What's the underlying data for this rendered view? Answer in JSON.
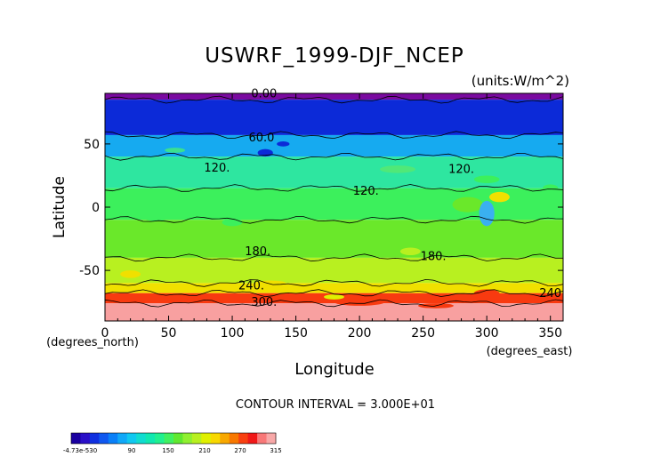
{
  "chart_data": {
    "type": "heatmap",
    "title": "USWRF_1999-DJF_NCEP",
    "units": "(units:W/m^2)",
    "xlabel": "Longitude",
    "ylabel": "Latitude",
    "x_unit_label": "(degrees_east)",
    "y_unit_label": "(degrees_north)",
    "xlim": [
      0,
      360
    ],
    "ylim": [
      -90,
      90
    ],
    "x_ticks": [
      0,
      50,
      100,
      150,
      200,
      250,
      300,
      350
    ],
    "y_ticks": [
      50,
      0,
      -50
    ],
    "contour_interval_text": "CONTOUR INTERVAL = 3.000E+01",
    "contour_labels": [
      "0.00",
      "60.0",
      "120.",
      "120.",
      "120.",
      "180.",
      "180.",
      "240.",
      "240",
      "300."
    ],
    "colorbar": {
      "labels": [
        "-4.73e-530",
        "90",
        "150",
        "210",
        "270",
        "315"
      ],
      "colors": [
        "#1a00a0",
        "#2a10c8",
        "#1030e0",
        "#1058f0",
        "#0a80f8",
        "#10a8f8",
        "#10c8f0",
        "#10dcd0",
        "#10e8b0",
        "#20f090",
        "#40f060",
        "#60e830",
        "#90f030",
        "#b8f020",
        "#e0f000",
        "#f8d800",
        "#f8a800",
        "#f87800",
        "#f84010",
        "#f01818",
        "#f87878",
        "#f8a8a8"
      ]
    },
    "zonal_bands": [
      {
        "lat_from": 90,
        "lat_to": 85,
        "value": 0,
        "color": "#7a0aa0"
      },
      {
        "lat_from": 85,
        "lat_to": 57,
        "value": 30,
        "color": "#0c2ad8"
      },
      {
        "lat_from": 57,
        "lat_to": 40,
        "value": 90,
        "color": "#16aaf0"
      },
      {
        "lat_from": 40,
        "lat_to": 15,
        "value": 120,
        "color": "#2ee6a0"
      },
      {
        "lat_from": 15,
        "lat_to": -10,
        "value": 120,
        "color": "#3cf05c"
      },
      {
        "lat_from": -10,
        "lat_to": -40,
        "value": 150,
        "color": "#6ae82a"
      },
      {
        "lat_from": -40,
        "lat_to": -60,
        "value": 180,
        "color": "#b8f020"
      },
      {
        "lat_from": -60,
        "lat_to": -68,
        "value": 210,
        "color": "#f0e000"
      },
      {
        "lat_from": -68,
        "lat_to": -76,
        "value": 255,
        "color": "#f83a10"
      },
      {
        "lat_from": -76,
        "lat_to": -90,
        "value": 300,
        "color": "#f8a0a0"
      }
    ]
  }
}
